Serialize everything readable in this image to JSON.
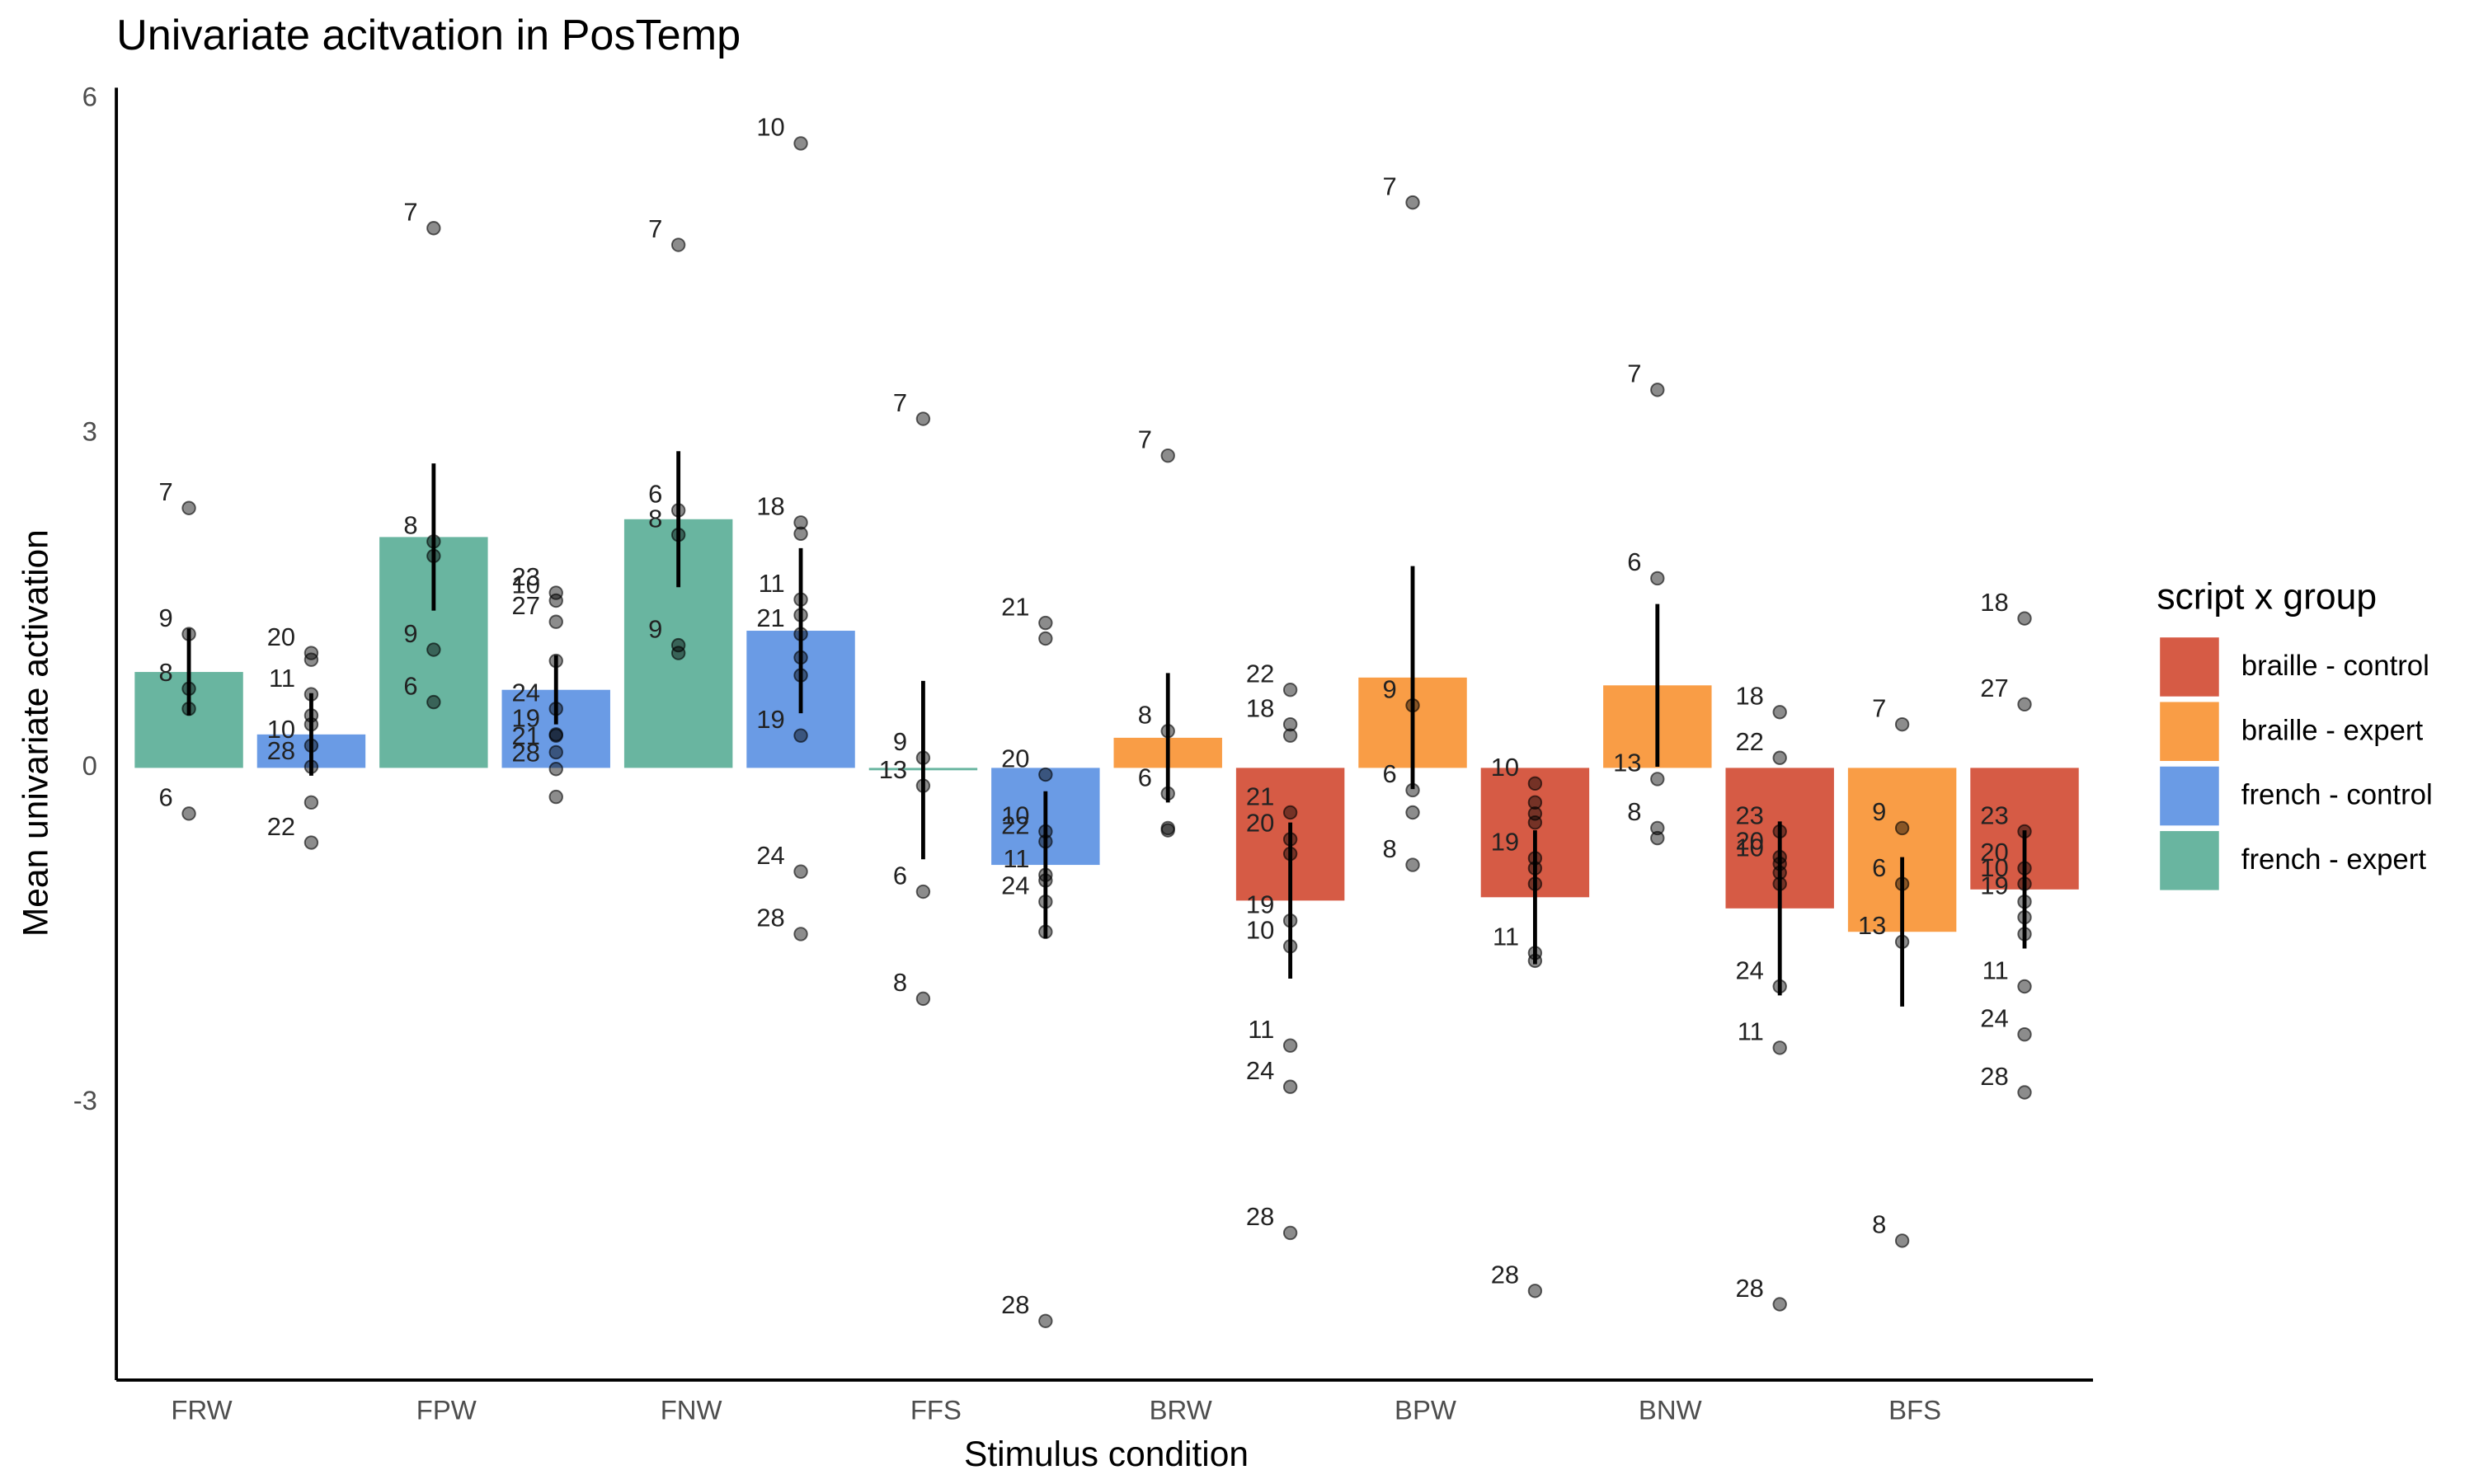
{
  "chart_data": {
    "type": "bar",
    "title": "Univariate acitvation in PosTemp",
    "x_label": "Stimulus condition",
    "y_label": "Mean univariate activation",
    "legend_title": "script x group",
    "legend_position": "right",
    "grid": false,
    "categories": [
      "FRW",
      null,
      "FPW",
      null,
      "FNW",
      null,
      "FFS",
      null,
      "BRW",
      null,
      "BPW",
      null,
      "BNW",
      null,
      "BFS",
      null
    ],
    "ylim": [
      -5.49,
      6.1
    ],
    "yticks": [
      6,
      3,
      0,
      -3
    ],
    "series": [
      {
        "name": "braille - control",
        "color": "#d65b45",
        "values": [
          null,
          null,
          null,
          null,
          null,
          null,
          null,
          null,
          null,
          -1.19,
          null,
          -1.16,
          null,
          -1.26,
          null,
          -1.09
        ],
        "errors": [
          null,
          null,
          null,
          null,
          null,
          null,
          null,
          null,
          null,
          0.7,
          null,
          0.6,
          null,
          0.78,
          null,
          0.53
        ]
      },
      {
        "name": "braille - expert",
        "color": "#f99d46",
        "values": [
          null,
          null,
          null,
          null,
          null,
          null,
          null,
          null,
          0.27,
          null,
          0.81,
          null,
          0.74,
          null,
          -1.47,
          null
        ],
        "errors": [
          null,
          null,
          null,
          null,
          null,
          null,
          null,
          null,
          0.58,
          null,
          1.0,
          null,
          0.73,
          null,
          0.67,
          null
        ]
      },
      {
        "name": "french - control",
        "color": "#6a9be5",
        "values": [
          null,
          0.3,
          null,
          0.7,
          null,
          1.23,
          null,
          -0.87,
          null,
          null,
          null,
          null,
          null,
          null,
          null,
          null
        ],
        "errors": [
          null,
          0.37,
          null,
          0.31,
          null,
          0.74,
          null,
          0.66,
          null,
          null,
          null,
          null,
          null,
          null,
          null,
          null
        ]
      },
      {
        "name": "french - expert",
        "color": "#69b5a0",
        "values": [
          0.86,
          null,
          2.07,
          null,
          2.23,
          null,
          -0.02,
          null,
          null,
          null,
          null,
          null,
          null,
          null,
          null,
          null
        ],
        "errors": [
          0.39,
          null,
          0.66,
          null,
          0.61,
          null,
          0.8,
          null,
          null,
          null,
          null,
          null,
          null,
          null,
          null,
          null
        ]
      }
    ],
    "points": [
      [
        {
          "label": "7",
          "value": 2.33
        },
        {
          "label": "9",
          "value": 1.2
        },
        {
          "label": "8",
          "value": 0.71
        },
        {
          "value": 0.53
        },
        {
          "label": "6",
          "value": -0.41
        }
      ],
      [
        {
          "label": "20",
          "value": 1.03
        },
        {
          "value": 0.97
        },
        {
          "label": "11",
          "value": 0.66
        },
        {
          "value": 0.47
        },
        {
          "value": 0.39
        },
        {
          "label": "10",
          "value": 0.2
        },
        {
          "label": "28",
          "value": 0.01
        },
        {
          "value": -0.31
        },
        {
          "label": "22",
          "value": -0.67
        }
      ],
      [
        {
          "label": "7",
          "value": 4.84
        },
        {
          "label": "8",
          "value": 2.03
        },
        {
          "value": 1.9
        },
        {
          "label": "9",
          "value": 1.06
        },
        {
          "label": "6",
          "value": 0.59
        }
      ],
      [
        {
          "label": "23",
          "value": 1.57
        },
        {
          "label": "10",
          "value": 1.5
        },
        {
          "label": "27",
          "value": 1.31
        },
        {
          "value": 0.96
        },
        {
          "label": "24",
          "value": 0.53
        },
        {
          "label": "19",
          "value": 0.3
        },
        {
          "value": 0.29
        },
        {
          "label": "21",
          "value": 0.14
        },
        {
          "label": "28",
          "value": -0.01
        },
        {
          "value": -0.26
        }
      ],
      [
        {
          "label": "7",
          "value": 4.69
        },
        {
          "label": "6",
          "value": 2.31
        },
        {
          "label": "8",
          "value": 2.09
        },
        {
          "label": "9",
          "value": 1.1
        },
        {
          "value": 1.03
        }
      ],
      [
        {
          "label": "10",
          "value": 5.6
        },
        {
          "label": "18",
          "value": 2.2
        },
        {
          "value": 2.1
        },
        {
          "label": "11",
          "value": 1.51
        },
        {
          "value": 1.37
        },
        {
          "label": "21",
          "value": 1.2
        },
        {
          "value": 0.99
        },
        {
          "value": 0.83
        },
        {
          "label": "19",
          "value": 0.29
        },
        {
          "label": "24",
          "value": -0.93
        },
        {
          "label": "28",
          "value": -1.49
        }
      ],
      [
        {
          "label": "7",
          "value": 3.13
        },
        {
          "label": "9",
          "value": 0.09
        },
        {
          "label": "13",
          "value": -0.16
        },
        {
          "label": "6",
          "value": -1.11
        },
        {
          "label": "8",
          "value": -2.07
        }
      ],
      [
        {
          "label": "21",
          "value": 1.3
        },
        {
          "value": 1.16
        },
        {
          "label": "20",
          "value": -0.06
        },
        {
          "label": "10",
          "value": -0.57
        },
        {
          "label": "22",
          "value": -0.66
        },
        {
          "label": "11",
          "value": -0.96
        },
        {
          "value": -1.01
        },
        {
          "label": "24",
          "value": -1.2
        },
        {
          "value": -1.47
        },
        {
          "label": "28",
          "value": -4.96
        }
      ],
      [
        {
          "label": "7",
          "value": 2.8
        },
        {
          "label": "8",
          "value": 0.33
        },
        {
          "label": "6",
          "value": -0.23
        },
        {
          "value": -0.54
        },
        {
          "value": -0.56
        }
      ],
      [
        {
          "label": "22",
          "value": 0.7
        },
        {
          "label": "18",
          "value": 0.39
        },
        {
          "value": 0.29
        },
        {
          "label": "21",
          "value": -0.4
        },
        {
          "label": "20",
          "value": -0.64
        },
        {
          "value": -0.77
        },
        {
          "label": "19",
          "value": -1.37
        },
        {
          "label": "10",
          "value": -1.6
        },
        {
          "label": "11",
          "value": -2.49
        },
        {
          "label": "24",
          "value": -2.86
        },
        {
          "label": "28",
          "value": -4.17
        }
      ],
      [
        {
          "label": "7",
          "value": 5.07
        },
        {
          "label": "9",
          "value": 0.56
        },
        {
          "label": "6",
          "value": -0.2
        },
        {
          "value": -0.4
        },
        {
          "label": "8",
          "value": -0.87
        }
      ],
      [
        {
          "label": "10",
          "value": -0.14
        },
        {
          "value": -0.31
        },
        {
          "value": -0.41
        },
        {
          "value": -0.49
        },
        {
          "label": "19",
          "value": -0.81
        },
        {
          "value": -0.9
        },
        {
          "value": -1.04
        },
        {
          "label": "11",
          "value": -1.66
        },
        {
          "value": -1.73
        },
        {
          "label": "28",
          "value": -4.69
        }
      ],
      [
        {
          "label": "7",
          "value": 3.39
        },
        {
          "label": "6",
          "value": 1.7
        },
        {
          "label": "13",
          "value": -0.1
        },
        {
          "label": "8",
          "value": -0.54
        },
        {
          "value": -0.63
        }
      ],
      [
        {
          "label": "18",
          "value": 0.5
        },
        {
          "label": "22",
          "value": 0.09
        },
        {
          "label": "23",
          "value": -0.57
        },
        {
          "label": "20",
          "value": -0.8
        },
        {
          "label": "10",
          "value": -0.86
        },
        {
          "value": -0.94
        },
        {
          "value": -1.04
        },
        {
          "label": "24",
          "value": -1.96
        },
        {
          "label": "11",
          "value": -2.51
        },
        {
          "label": "28",
          "value": -4.81
        }
      ],
      [
        {
          "label": "7",
          "value": 0.39
        },
        {
          "label": "9",
          "value": -0.54
        },
        {
          "label": "6",
          "value": -1.04
        },
        {
          "label": "13",
          "value": -1.56
        },
        {
          "label": "8",
          "value": -4.24
        }
      ],
      [
        {
          "label": "18",
          "value": 1.34
        },
        {
          "label": "27",
          "value": 0.57
        },
        {
          "label": "23",
          "value": -0.57
        },
        {
          "label": "20",
          "value": -0.9
        },
        {
          "label": "10",
          "value": -1.04
        },
        {
          "label": "19",
          "value": -1.2
        },
        {
          "value": -1.34
        },
        {
          "value": -1.49
        },
        {
          "label": "11",
          "value": -1.96
        },
        {
          "label": "24",
          "value": -2.39
        },
        {
          "label": "28",
          "value": -2.91
        }
      ]
    ]
  }
}
